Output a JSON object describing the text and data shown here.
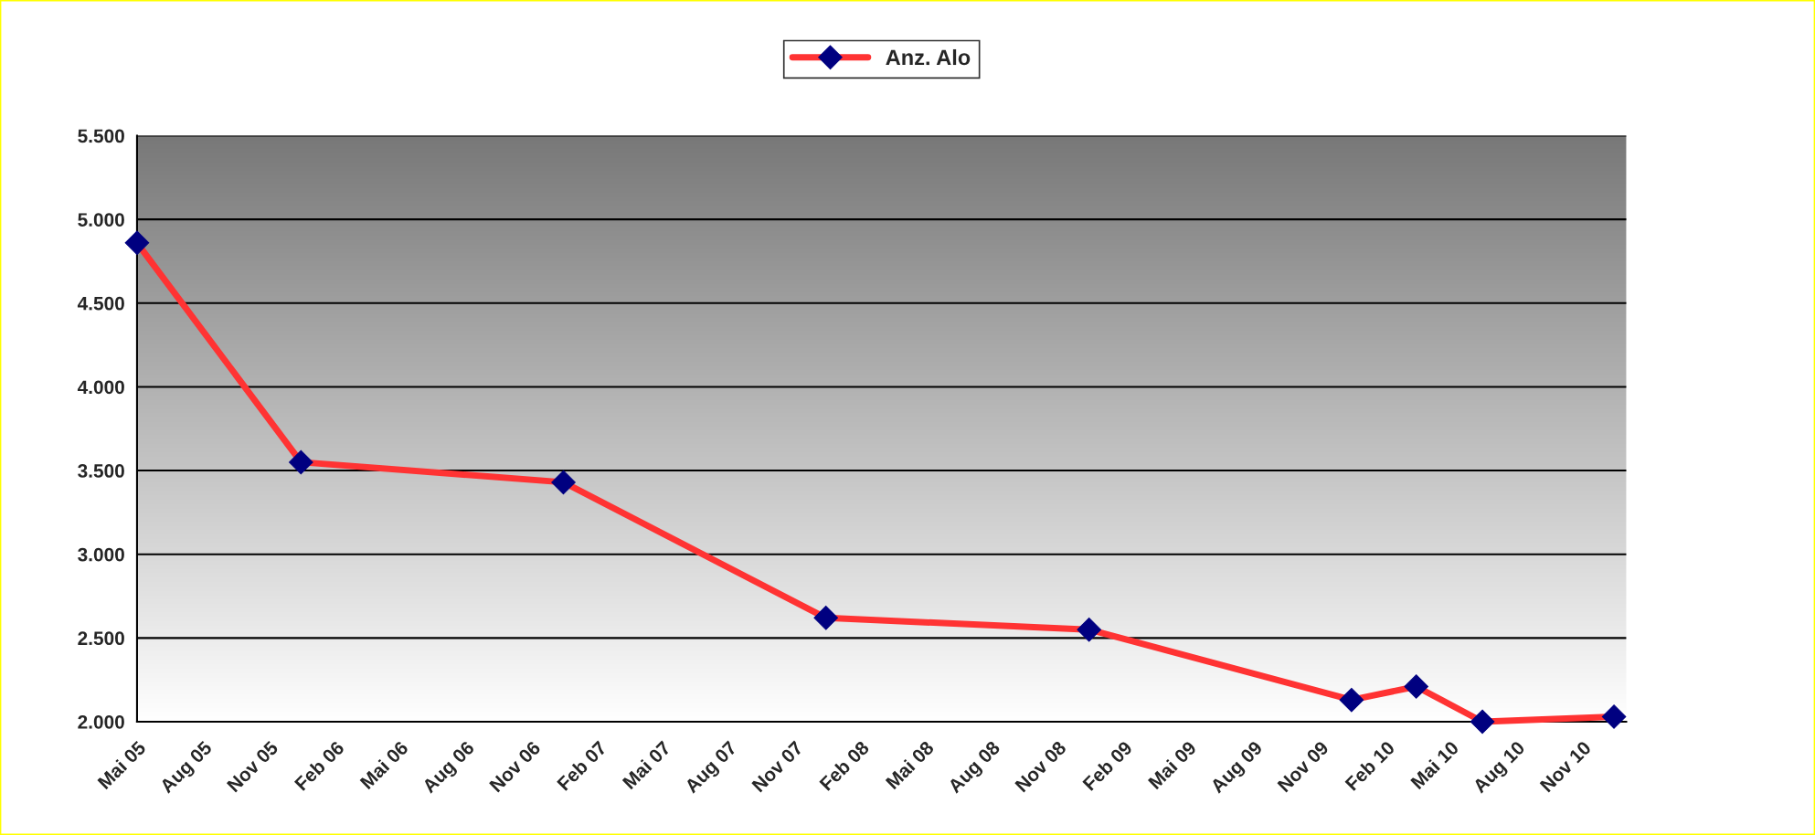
{
  "chart_data": {
    "type": "line",
    "x": [
      "2005-05",
      "2005-12-15",
      "2006-12-15",
      "2007-12-15",
      "2008-12-15",
      "2009-12-15",
      "2010-03-15",
      "2010-06-15",
      "2010-12-15"
    ],
    "series": [
      {
        "name": "Anz. Alo",
        "color": "#ff3333",
        "values": [
          4860,
          3550,
          3430,
          2620,
          2550,
          2130,
          2210,
          2000,
          2030
        ]
      }
    ],
    "marker": "diamond",
    "line_style": "solid",
    "grid": "y",
    "legend": "top",
    "ylim": [
      2000,
      5500
    ],
    "yticks": [
      {
        "value": 2000,
        "label": "2.000"
      },
      {
        "value": 2500,
        "label": "2.500"
      },
      {
        "value": 3000,
        "label": "3.000"
      },
      {
        "value": 3500,
        "label": "3.500"
      },
      {
        "value": 4000,
        "label": "4.000"
      },
      {
        "value": 4500,
        "label": "4.500"
      },
      {
        "value": 5000,
        "label": "5.000"
      },
      {
        "value": 5500,
        "label": "5.500"
      }
    ],
    "xlim": [
      "2005-05",
      "2011-01"
    ],
    "xticks": [
      {
        "value": "2005-05",
        "label": "Mai 05"
      },
      {
        "value": "2005-08",
        "label": "Aug 05"
      },
      {
        "value": "2005-11",
        "label": "Nov 05"
      },
      {
        "value": "2006-02",
        "label": "Feb 06"
      },
      {
        "value": "2006-05",
        "label": "Mai 06"
      },
      {
        "value": "2006-08",
        "label": "Aug 06"
      },
      {
        "value": "2006-11",
        "label": "Nov 06"
      },
      {
        "value": "2007-02",
        "label": "Feb 07"
      },
      {
        "value": "2007-05",
        "label": "Mai 07"
      },
      {
        "value": "2007-08",
        "label": "Aug 07"
      },
      {
        "value": "2007-11",
        "label": "Nov 07"
      },
      {
        "value": "2008-02",
        "label": "Feb 08"
      },
      {
        "value": "2008-05",
        "label": "Mai 08"
      },
      {
        "value": "2008-08",
        "label": "Aug 08"
      },
      {
        "value": "2008-11",
        "label": "Nov 08"
      },
      {
        "value": "2009-02",
        "label": "Feb 09"
      },
      {
        "value": "2009-05",
        "label": "Mai 09"
      },
      {
        "value": "2009-08",
        "label": "Aug 09"
      },
      {
        "value": "2009-11",
        "label": "Nov 09"
      },
      {
        "value": "2010-02",
        "label": "Feb 10"
      },
      {
        "value": "2010-05",
        "label": "Mai 10"
      },
      {
        "value": "2010-08",
        "label": "Aug 10"
      },
      {
        "value": "2010-11",
        "label": "Nov 10"
      }
    ]
  }
}
